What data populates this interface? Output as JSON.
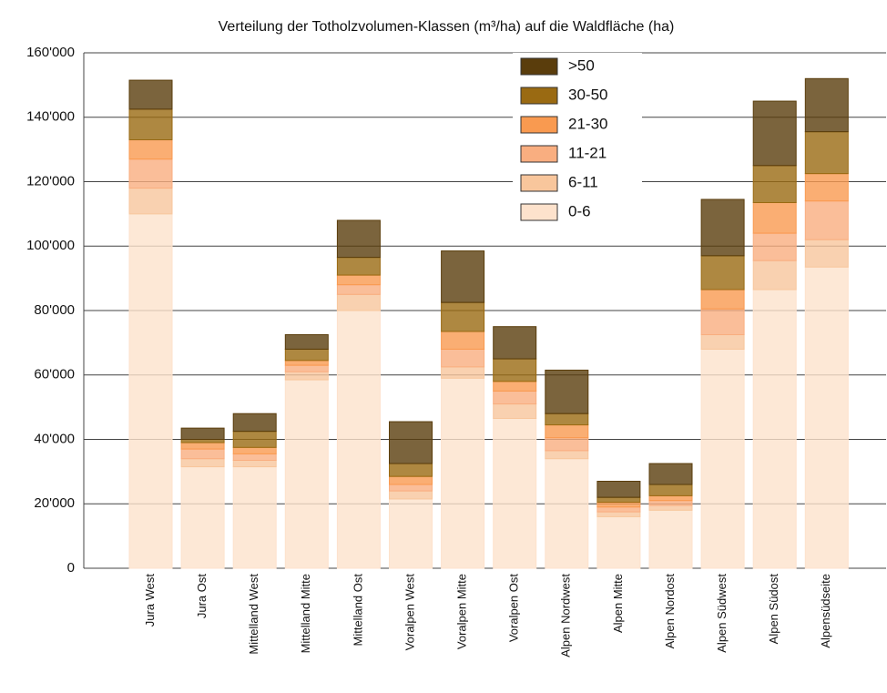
{
  "chart_data": {
    "type": "stacked_bar",
    "title": "Verteilung der Totholzvolumen-Klassen (m³/ha) auf die Waldfläche (ha)",
    "categories": [
      "Jura West",
      "Jura Ost",
      "Mittelland West",
      "Mittelland Mitte",
      "Mittelland Ost",
      "Voralpen West",
      "Voralpen Mitte",
      "Voralpen Ost",
      "Alpen Nordwest",
      "Alpen Mitte",
      "Alpen Nordost",
      "Alpen Südwest",
      "Alpen Südost",
      "Alpensüdseite"
    ],
    "series": [
      {
        "name": "0-6",
        "color": "#fde2cc",
        "values": [
          110000,
          31500,
          31500,
          58500,
          80000,
          21500,
          59000,
          46500,
          34000,
          16000,
          18000,
          68000,
          86500,
          93500
        ]
      },
      {
        "name": "6-11",
        "color": "#f8c69c",
        "values": [
          8000,
          2500,
          2000,
          2500,
          5000,
          2500,
          3500,
          4500,
          2500,
          1500,
          1500,
          4500,
          9000,
          8500
        ]
      },
      {
        "name": "11-21",
        "color": "#f9ae80",
        "values": [
          9000,
          3000,
          2000,
          2000,
          3000,
          2000,
          5500,
          4000,
          4000,
          1500,
          1500,
          8000,
          8500,
          12000
        ]
      },
      {
        "name": "21-30",
        "color": "#f99a50",
        "values": [
          6000,
          2000,
          2000,
          1500,
          3000,
          2500,
          5500,
          3000,
          4000,
          1500,
          1500,
          6000,
          9500,
          8500
        ]
      },
      {
        "name": "30-50",
        "color": "#9a6a12",
        "values": [
          9500,
          1000,
          5000,
          3500,
          5500,
          4000,
          9000,
          7000,
          3500,
          1500,
          3500,
          10500,
          11500,
          13000
        ]
      },
      {
        "name": ">50",
        "color": "#5a3d0c",
        "values": [
          9000,
          3500,
          5500,
          4500,
          11500,
          13000,
          16000,
          10000,
          13500,
          5000,
          6500,
          17500,
          20000,
          16500
        ]
      }
    ],
    "ylim": [
      0,
      160000
    ],
    "yticks": [
      0,
      {
        "value": 20000,
        "label": "20'000"
      },
      {
        "value": 40000,
        "label": "40'000"
      },
      {
        "value": 60000,
        "label": "60'000"
      },
      {
        "value": 80000,
        "label": "80'000"
      },
      {
        "value": 100000,
        "label": "100'000"
      },
      {
        "value": 120000,
        "label": "120'000"
      },
      {
        "value": 140000,
        "label": "140'000"
      },
      {
        "value": 160000,
        "label": "160'000"
      }
    ],
    "grid": true
  }
}
